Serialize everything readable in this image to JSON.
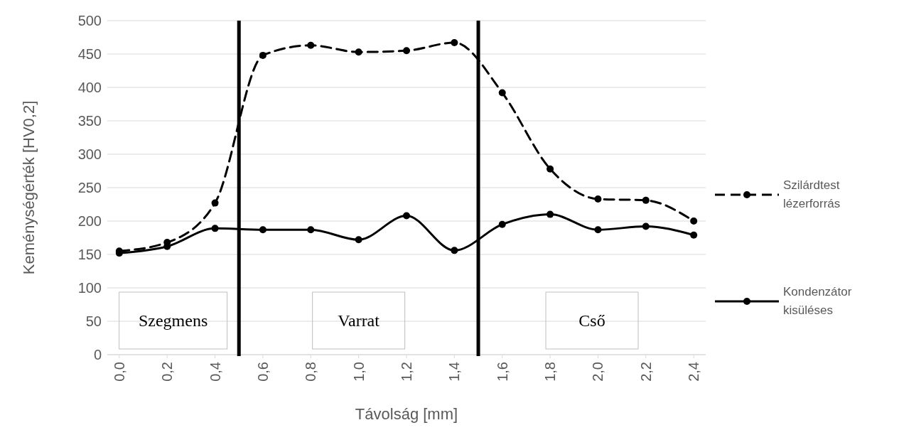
{
  "chart_data": {
    "type": "line",
    "xlabel": "Távolság [mm]",
    "ylabel": "Keménységérték [HV0,2]",
    "x": [
      0,
      0.2,
      0.4,
      0.6,
      0.8,
      1.0,
      1.2,
      1.4,
      1.6,
      1.8,
      2.0,
      2.2,
      2.4
    ],
    "xlim": [
      -0.05,
      2.45
    ],
    "xticks": [
      {
        "value": 0,
        "label": "0,0"
      },
      {
        "value": 0.2,
        "label": "0,2"
      },
      {
        "value": 0.4,
        "label": "0,4"
      },
      {
        "value": 0.6,
        "label": "0,6"
      },
      {
        "value": 0.8,
        "label": "0,8"
      },
      {
        "value": 1.0,
        "label": "1,0"
      },
      {
        "value": 1.2,
        "label": "1,2"
      },
      {
        "value": 1.4,
        "label": "1,4"
      },
      {
        "value": 1.6,
        "label": "1,6"
      },
      {
        "value": 1.8,
        "label": "1,8"
      },
      {
        "value": 2.0,
        "label": "2,0"
      },
      {
        "value": 2.2,
        "label": "2,2"
      },
      {
        "value": 2.4,
        "label": "2,4"
      }
    ],
    "ylim": [
      0,
      500
    ],
    "yticks": [
      0,
      50,
      100,
      150,
      200,
      250,
      300,
      350,
      400,
      450,
      500
    ],
    "grid": "y",
    "legend": "right",
    "marker": "circle",
    "series": [
      {
        "name": "Szilárdtest lézerforrás",
        "color": "#000000",
        "line_style": "dashed",
        "values": [
          155,
          168,
          227,
          448,
          463,
          453,
          455,
          467,
          392,
          278,
          233,
          231,
          200
        ]
      },
      {
        "name": "Kondenzátor kisüléses",
        "color": "#000000",
        "line_style": "solid",
        "values": [
          152,
          162,
          189,
          187,
          187,
          172,
          208,
          156,
          195,
          210,
          187,
          192,
          179
        ]
      }
    ],
    "ref_lines": [
      {
        "axis": "x",
        "value": 0.5,
        "color": "#000000"
      },
      {
        "axis": "x",
        "value": 1.5,
        "color": "#000000"
      }
    ],
    "annotations": [
      "Szegmens",
      "Varrat",
      "Cső"
    ]
  }
}
